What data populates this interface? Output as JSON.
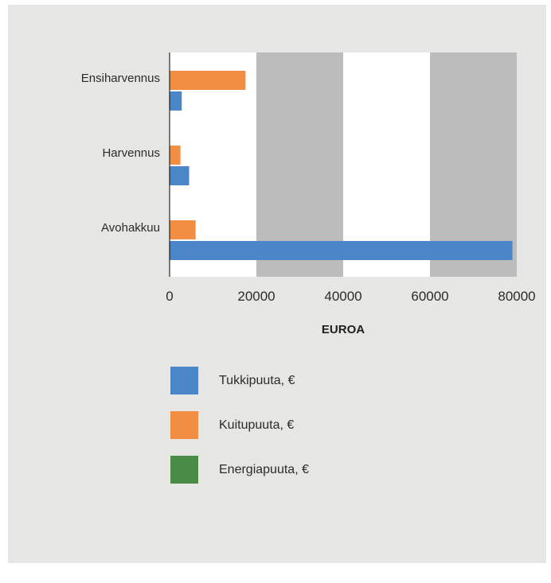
{
  "chart_data": {
    "type": "bar",
    "orientation": "horizontal",
    "categories": [
      "Ensiharvennus",
      "Harvennus",
      "Avohakkuu"
    ],
    "series": [
      {
        "name": "Tukkipuuta, €",
        "color": "#4a86c8",
        "values": [
          2800,
          4500,
          79000
        ]
      },
      {
        "name": "Kuitupuuta, €",
        "color": "#f28e43",
        "values": [
          17500,
          2500,
          6000
        ]
      },
      {
        "name": "Energiapuuta, €",
        "color": "#4a8b46",
        "values": [
          0,
          0,
          0
        ]
      }
    ],
    "xlabel": "EUROA",
    "ylabel": "",
    "xlim": [
      0,
      80000
    ],
    "xticks": [
      0,
      20000,
      40000,
      60000,
      80000
    ],
    "tick_labels": [
      "0",
      "20000",
      "40000",
      "60000",
      "80000"
    ],
    "band_colors": [
      "#ffffff",
      "#bcbcbc"
    ],
    "legend_position": "bottom"
  }
}
